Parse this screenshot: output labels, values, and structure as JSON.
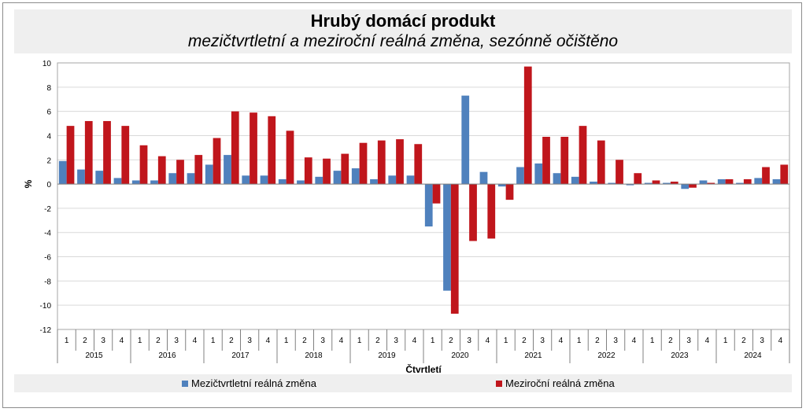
{
  "chart_data": {
    "type": "bar",
    "title": "Hrubý domácí produkt",
    "subtitle": "mezičtvrtletní a meziroční reálná změna, sezónně očištěno",
    "xlabel": "Čtvrtletí",
    "ylabel": "%",
    "ylim": [
      -12,
      10
    ],
    "yticks": [
      10,
      8,
      6,
      4,
      2,
      0,
      -2,
      -4,
      -6,
      -8,
      -10,
      -12
    ],
    "grid": true,
    "legend_position": "bottom",
    "years": [
      "2015",
      "2016",
      "2017",
      "2018",
      "2019",
      "2020",
      "2021",
      "2022",
      "2023",
      "2024"
    ],
    "quarters": [
      "1",
      "2",
      "3",
      "4"
    ],
    "series": [
      {
        "name": "Mezičtvrtletní reálná změna",
        "color": "#4f81bd",
        "values": [
          1.9,
          1.2,
          1.1,
          0.5,
          0.3,
          0.3,
          0.9,
          0.9,
          1.6,
          2.4,
          0.7,
          0.7,
          0.4,
          0.3,
          0.6,
          1.1,
          1.3,
          0.4,
          0.7,
          0.7,
          -3.5,
          -8.8,
          7.3,
          1.0,
          -0.2,
          1.4,
          1.7,
          0.9,
          0.6,
          0.2,
          0.1,
          -0.1,
          0.1,
          0.1,
          -0.4,
          0.3,
          0.4,
          0.1,
          0.5,
          0.4
        ]
      },
      {
        "name": "Meziroční reálná změna",
        "color": "#c0161c",
        "values": [
          4.8,
          5.2,
          5.2,
          4.8,
          3.2,
          2.3,
          2.0,
          2.4,
          3.8,
          6.0,
          5.9,
          5.6,
          4.4,
          2.2,
          2.1,
          2.5,
          3.4,
          3.6,
          3.7,
          3.3,
          -1.6,
          -10.7,
          -4.7,
          -4.5,
          -1.3,
          9.7,
          3.9,
          3.9,
          4.8,
          3.6,
          2.0,
          0.9,
          0.3,
          0.2,
          -0.3,
          0.1,
          0.4,
          0.4,
          1.4,
          1.6
        ]
      }
    ]
  }
}
